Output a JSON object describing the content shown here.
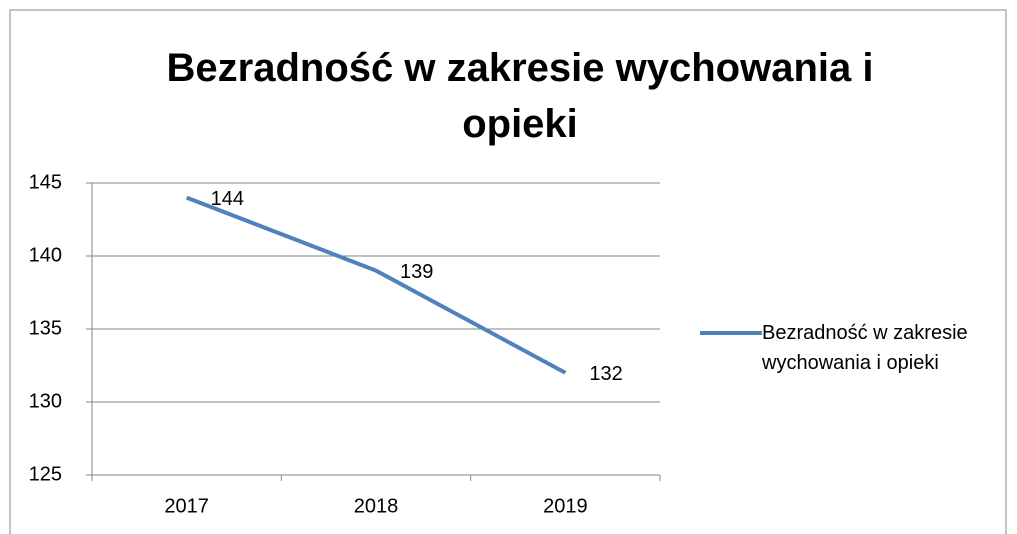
{
  "chart_data": {
    "type": "line",
    "title": "Bezradność w zakresie wychowania i opieki",
    "categories": [
      "2017",
      "2018",
      "2019"
    ],
    "series": [
      {
        "name": "Bezradność w zakresie wychowania i opieki",
        "color": "#4f81bd",
        "values": [
          144,
          139,
          132
        ]
      }
    ],
    "ylim": [
      125,
      145
    ],
    "yticks": [
      125,
      130,
      135,
      140,
      145
    ],
    "grid": true,
    "legend": "right"
  }
}
